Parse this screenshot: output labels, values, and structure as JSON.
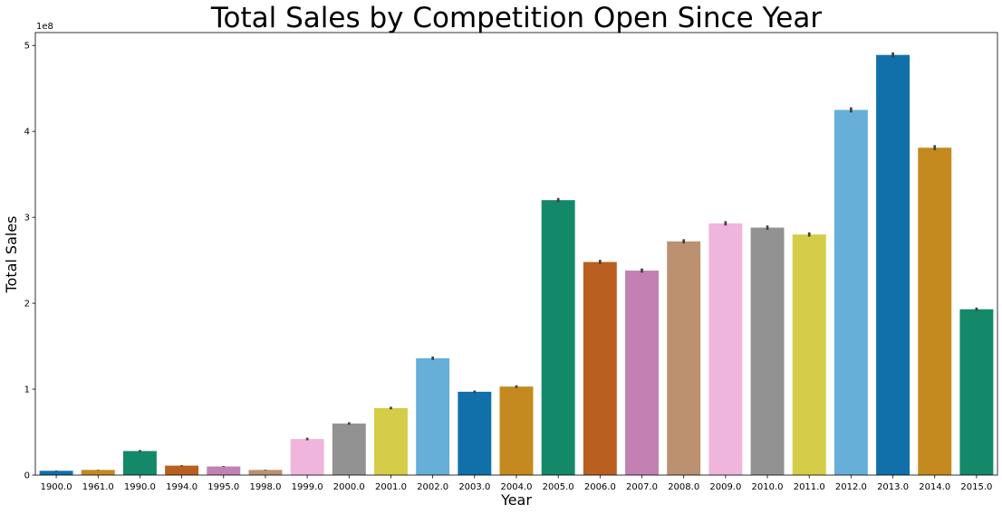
{
  "chart_data": {
    "type": "bar",
    "title": "Total Sales by Competition Open Since Year",
    "xlabel": "Year",
    "ylabel": "Total Sales",
    "y_offset_label": "1e8",
    "ylim": [
      0,
      5.15
    ],
    "yticks": [
      0,
      1,
      2,
      3,
      4,
      5
    ],
    "grid": false,
    "categories": [
      "1900.0",
      "1961.0",
      "1990.0",
      "1994.0",
      "1995.0",
      "1998.0",
      "1999.0",
      "2000.0",
      "2001.0",
      "2002.0",
      "2003.0",
      "2004.0",
      "2005.0",
      "2006.0",
      "2007.0",
      "2008.0",
      "2009.0",
      "2010.0",
      "2011.0",
      "2012.0",
      "2013.0",
      "2014.0",
      "2015.0"
    ],
    "values": [
      0.05,
      0.06,
      0.28,
      0.11,
      0.1,
      0.06,
      0.42,
      0.6,
      0.78,
      1.36,
      0.97,
      1.03,
      3.2,
      2.48,
      2.38,
      2.72,
      2.93,
      2.88,
      2.8,
      4.25,
      4.89,
      3.81,
      1.93
    ],
    "errors": [
      0.004,
      0.003,
      0.012,
      0.006,
      0.005,
      0.004,
      0.015,
      0.015,
      0.015,
      0.02,
      0.015,
      0.015,
      0.025,
      0.025,
      0.025,
      0.025,
      0.025,
      0.025,
      0.025,
      0.03,
      0.03,
      0.03,
      0.02
    ],
    "colors": [
      "#1170aa",
      "#c4891f",
      "#14896a",
      "#b95f1f",
      "#c380b3",
      "#bb9170",
      "#f0b5dc",
      "#929292",
      "#d5cd48",
      "#66afd9",
      "#1170aa",
      "#c4891f",
      "#14896a",
      "#b95f1f",
      "#c380b3",
      "#bb9170",
      "#f0b5dc",
      "#929292",
      "#d5cd48",
      "#66afd9",
      "#1170aa",
      "#c4891f",
      "#14896a"
    ]
  }
}
